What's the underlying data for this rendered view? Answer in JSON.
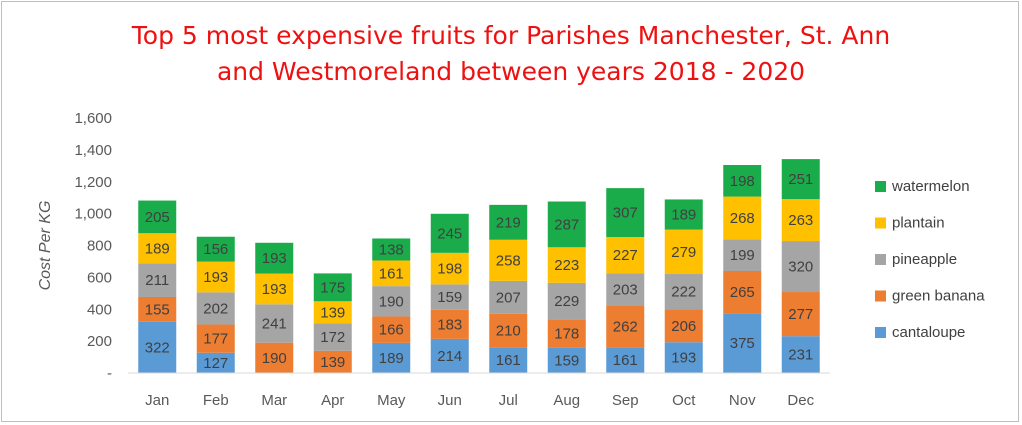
{
  "chart_data": {
    "type": "bar",
    "stacked": true,
    "title_lines": [
      "Top 5 most expensive fruits for Parishes Manchester, St. Ann",
      "and Westmoreland between years 2018 - 2020"
    ],
    "xlabel": "",
    "ylabel": "Cost Per KG",
    "ylim": [
      0,
      1600
    ],
    "y_ticks": [
      "-",
      "200",
      "400",
      "600",
      "800",
      "1,000",
      "1,200",
      "1,400",
      "1,600"
    ],
    "grid": true,
    "legend_position": "right",
    "categories": [
      "Jan",
      "Feb",
      "Mar",
      "Apr",
      "May",
      "Jun",
      "Jul",
      "Aug",
      "Sep",
      "Oct",
      "Nov",
      "Dec"
    ],
    "series": [
      {
        "name": "cantaloupe",
        "color": "#5b9bd5",
        "values": [
          322,
          127,
          0,
          0,
          189,
          214,
          161,
          159,
          161,
          193,
          375,
          231
        ]
      },
      {
        "name": "green banana",
        "color": "#ed7d31",
        "values": [
          155,
          177,
          190,
          139,
          166,
          183,
          210,
          178,
          262,
          206,
          265,
          277
        ]
      },
      {
        "name": "pineapple",
        "color": "#a5a5a5",
        "values": [
          211,
          202,
          241,
          172,
          190,
          159,
          207,
          229,
          203,
          222,
          199,
          320
        ]
      },
      {
        "name": "plantain",
        "color": "#ffc000",
        "values": [
          189,
          193,
          193,
          139,
          161,
          198,
          258,
          223,
          227,
          279,
          268,
          263
        ]
      },
      {
        "name": "watermelon",
        "color": "#1aab4b",
        "values": [
          205,
          156,
          193,
          175,
          138,
          245,
          219,
          287,
          307,
          189,
          198,
          251
        ]
      }
    ]
  }
}
